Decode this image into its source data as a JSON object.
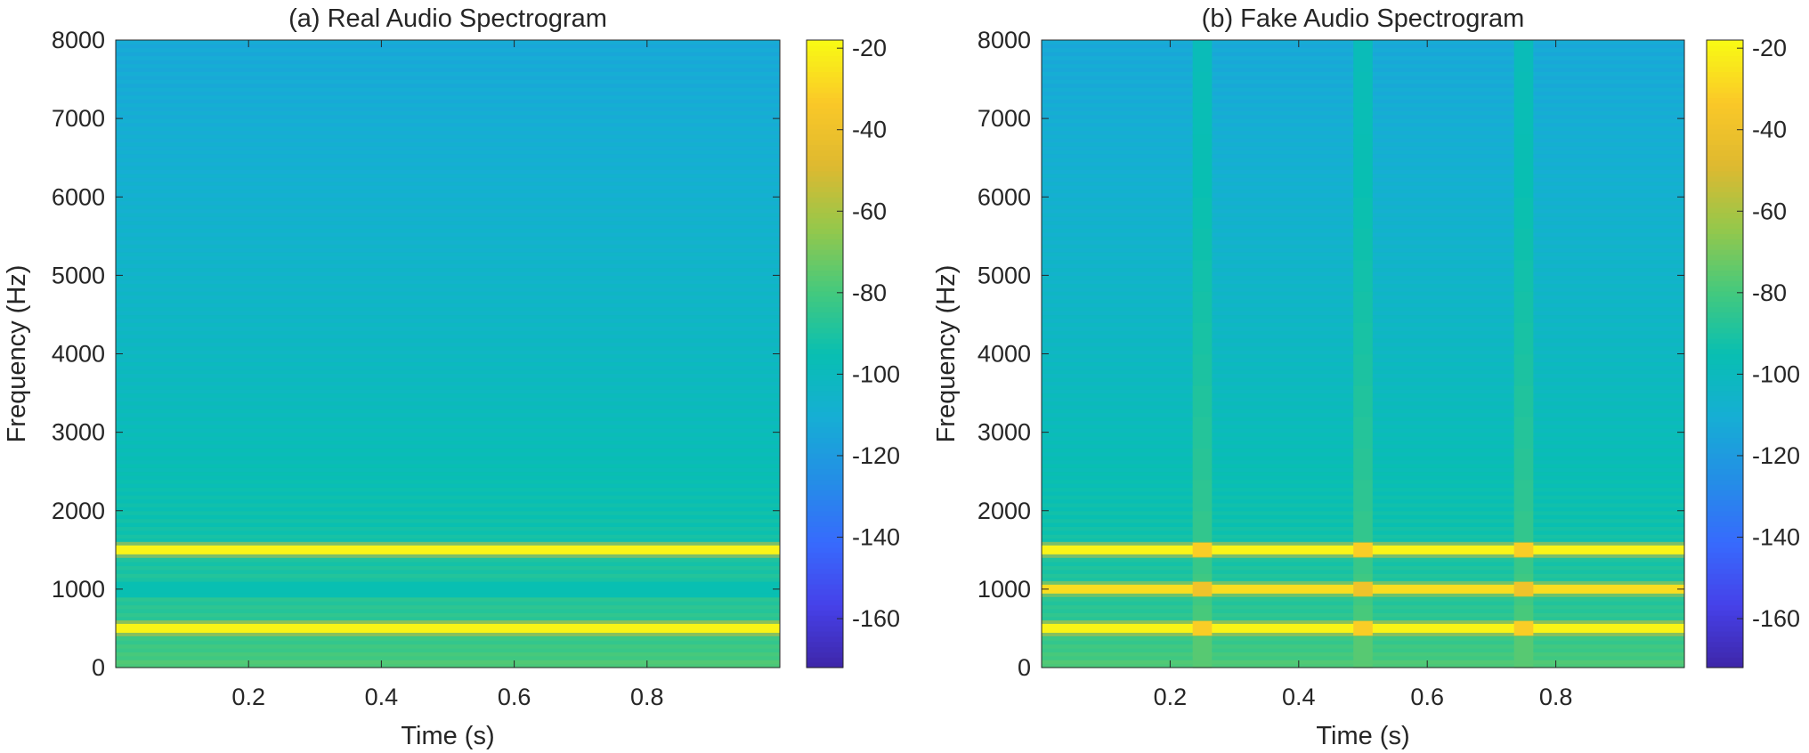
{
  "chart_data": [
    {
      "type": "heatmap",
      "title": "(a) Real Audio Spectrogram",
      "xlabel": "Time (s)",
      "ylabel": "Frequency (Hz)",
      "xlim": [
        0,
        1
      ],
      "ylim": [
        0,
        8000
      ],
      "xticks": [
        0.2,
        0.4,
        0.6,
        0.8
      ],
      "yticks": [
        0,
        1000,
        2000,
        3000,
        4000,
        5000,
        6000,
        7000,
        8000
      ],
      "colorbar": {
        "clim": [
          -172,
          -18
        ],
        "ticks": [
          -20,
          -40,
          -60,
          -80,
          -100,
          -120,
          -140,
          -160
        ]
      },
      "background_db": {
        "low_freq": -75,
        "high_freq": -113
      },
      "tones": [
        {
          "freq_hz": 500,
          "db": -20
        },
        {
          "freq_hz": 1500,
          "db": -20
        }
      ],
      "dips": [
        {
          "freq_hz": 1000,
          "db": -95
        }
      ],
      "transients": []
    },
    {
      "type": "heatmap",
      "title": "(b) Fake Audio Spectrogram",
      "xlabel": "Time (s)",
      "ylabel": "Frequency (Hz)",
      "xlim": [
        0,
        1
      ],
      "ylim": [
        0,
        8000
      ],
      "xticks": [
        0.2,
        0.4,
        0.6,
        0.8
      ],
      "yticks": [
        0,
        1000,
        2000,
        3000,
        4000,
        5000,
        6000,
        7000,
        8000
      ],
      "colorbar": {
        "clim": [
          -172,
          -18
        ],
        "ticks": [
          -20,
          -40,
          -60,
          -80,
          -100,
          -120,
          -140,
          -160
        ]
      },
      "background_db": {
        "low_freq": -75,
        "high_freq": -113
      },
      "tones": [
        {
          "freq_hz": 500,
          "db": -20
        },
        {
          "freq_hz": 1000,
          "db": -27
        },
        {
          "freq_hz": 1500,
          "db": -20
        }
      ],
      "dips": [],
      "transients": [
        {
          "time_s": 0.25,
          "width_s": 0.03,
          "db_low": -72,
          "db_high": -98
        },
        {
          "time_s": 0.5,
          "width_s": 0.03,
          "db_low": -72,
          "db_high": -98
        },
        {
          "time_s": 0.75,
          "width_s": 0.03,
          "db_low": -72,
          "db_high": -98
        }
      ]
    }
  ]
}
